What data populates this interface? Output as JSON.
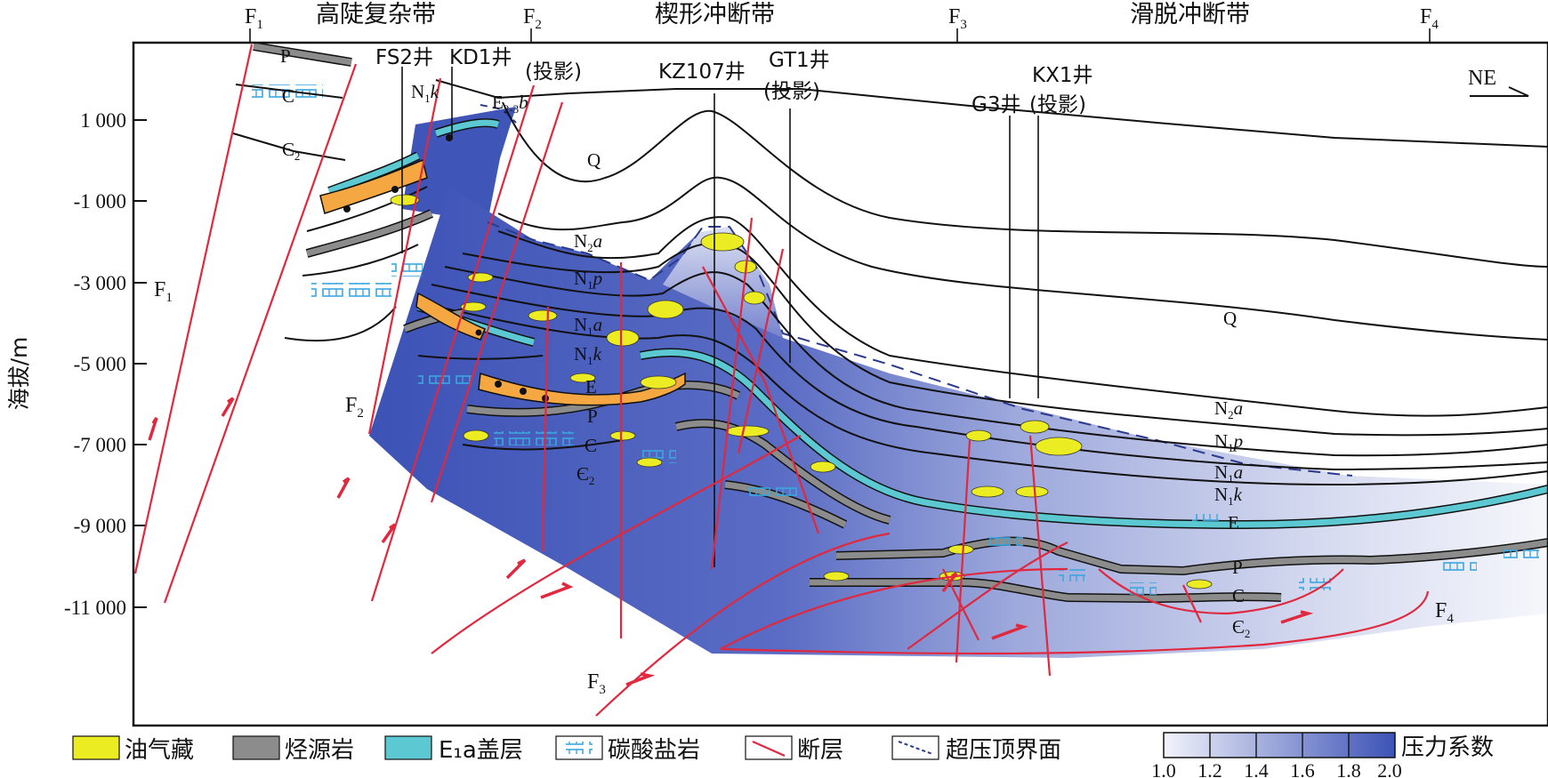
{
  "header": {
    "faults": [
      "F1",
      "F2",
      "F3",
      "F4"
    ],
    "zones": [
      "高陡复杂带",
      "楔形冲断带",
      "滑脱冲断带"
    ]
  },
  "axis": {
    "label": "海拔/m",
    "ticks": [
      "1 000",
      "-1 000",
      "-3 000",
      "-5 000",
      "-7 000",
      "-9 000",
      "-11 000"
    ]
  },
  "wells": {
    "fs2": "FS2井",
    "kd1": "KD1井",
    "projection": "(投影)",
    "kz107": "KZ107井",
    "gt1": "GT1井",
    "g3": "G3井",
    "kx1": "KX1井"
  },
  "direction": "NE",
  "strata": {
    "P": "P",
    "C": "C",
    "Cam2": "Є",
    "sub2": "2",
    "Q": "Q",
    "N2a": "N",
    "N1p": "N",
    "N1a": "N",
    "N1k": "N",
    "E": "E",
    "E23b": "E",
    "sub_1": "1",
    "sub_23": "2-3",
    "a": "a",
    "p": "p",
    "k": "k",
    "b": "b"
  },
  "fault_labels": {
    "F1": "F",
    "F2": "F",
    "F3": "F",
    "F4": "F",
    "s1": "1",
    "s2": "2",
    "s3": "3",
    "s4": "4"
  },
  "legend": {
    "oil": "油气藏",
    "source": "烃源岩",
    "cap": "E₁a盖层",
    "carbonate": "碳酸盐岩",
    "fault": "断层",
    "overpressure": "超压顶界面",
    "pressure_title": "压力系数",
    "scale": [
      "1.0",
      "1.2",
      "1.4",
      "1.6",
      "1.8",
      "2.0"
    ]
  },
  "colors": {
    "oil": "#ecec22",
    "source": "#8c8c8c",
    "cap": "#5cc9d2",
    "carbonate": "#3aa7df",
    "fault": "#e0283e",
    "pressure_low": "#eef0fa",
    "pressure_high": "#3c52b6"
  }
}
